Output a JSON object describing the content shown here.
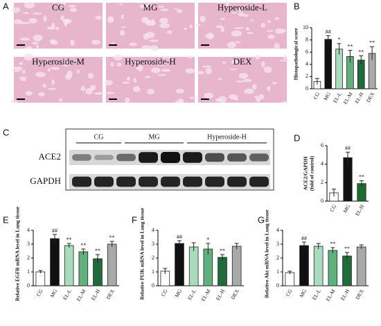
{
  "panel_letters": [
    "A",
    "B",
    "C",
    "D",
    "E",
    "F",
    "G"
  ],
  "histology": {
    "labels": [
      "CG",
      "MG",
      "Hyperoside-L",
      "Hyperoside-M",
      "Hyperoside-H",
      "DEX"
    ]
  },
  "blot": {
    "groups": [
      "CG",
      "MG",
      "Hyperoside-H"
    ],
    "rows": [
      "ACE2",
      "GAPDH"
    ]
  },
  "chart_data": [
    {
      "type": "bar",
      "ylabel": "Histopathological score",
      "categories": [
        "CG",
        "MG",
        "EL-L",
        "EL-M",
        "EL-H",
        "DEX"
      ],
      "values": [
        1.2,
        8.1,
        6.5,
        5.3,
        4.7,
        5.8
      ],
      "errors": [
        0.5,
        0.6,
        0.9,
        1.0,
        0.7,
        1.1
      ],
      "annotations": [
        null,
        "##",
        "*",
        "**",
        "**",
        "**"
      ],
      "colors": [
        "#ffffff",
        "#111111",
        "#a9dcbc",
        "#5fb07c",
        "#1f6b3b",
        "#a9a9a9"
      ],
      "ylim": [
        0,
        10
      ],
      "yticks": [
        0,
        2,
        4,
        6,
        8,
        10
      ]
    },
    {
      "type": "bar",
      "ylabel": [
        "ACE2/GAPDH",
        "(fold of control)"
      ],
      "categories": [
        "CG",
        "MG",
        "EL-H"
      ],
      "values": [
        0.9,
        4.7,
        1.9
      ],
      "errors": [
        0.4,
        0.6,
        0.3
      ],
      "annotations": [
        null,
        "##",
        "**"
      ],
      "colors": [
        "#ffffff",
        "#111111",
        "#1e6b2e"
      ],
      "ylim": [
        0,
        6
      ],
      "yticks": [
        0,
        2,
        4,
        6
      ]
    },
    {
      "type": "bar",
      "ylabel": "Relative EGFR mRNA level in Lung tissue",
      "categories": [
        "CG",
        "MG",
        "EL-L",
        "EL-M",
        "EL-H",
        "DEX"
      ],
      "values": [
        1.0,
        3.4,
        2.9,
        2.45,
        1.95,
        3.0
      ],
      "errors": [
        0.1,
        0.3,
        0.15,
        0.2,
        0.3,
        0.2
      ],
      "annotations": [
        null,
        "##",
        "**",
        "**",
        "**",
        "**"
      ],
      "colors": [
        "#ffffff",
        "#111111",
        "#a9dcbc",
        "#5fb07c",
        "#1f6b3b",
        "#a9a9a9"
      ],
      "ylim": [
        0,
        4
      ],
      "yticks": [
        0,
        1,
        2,
        3,
        4
      ]
    },
    {
      "type": "bar",
      "ylabel": "Relative PI3K mRNA level in Lung tissue",
      "categories": [
        "CG",
        "MG",
        "EL-L",
        "EL-M",
        "EL-H",
        "DEX"
      ],
      "values": [
        1.05,
        3.05,
        2.8,
        2.65,
        2.05,
        2.85
      ],
      "errors": [
        0.2,
        0.2,
        0.3,
        0.4,
        0.2,
        0.2
      ],
      "annotations": [
        null,
        "##",
        null,
        "*",
        "**",
        null
      ],
      "colors": [
        "#ffffff",
        "#111111",
        "#a9dcbc",
        "#5fb07c",
        "#1f6b3b",
        "#a9a9a9"
      ],
      "ylim": [
        0,
        4
      ],
      "yticks": [
        0,
        1,
        2,
        3,
        4
      ]
    },
    {
      "type": "bar",
      "ylabel": "Relative Akt mRNA level in Lung tissue",
      "categories": [
        "CG",
        "MG",
        "EL-L",
        "EL-M",
        "EL-H",
        "DEX"
      ],
      "values": [
        0.95,
        2.9,
        2.85,
        2.55,
        2.15,
        2.8
      ],
      "errors": [
        0.1,
        0.25,
        0.2,
        0.2,
        0.25,
        0.15
      ],
      "annotations": [
        null,
        "##",
        null,
        "**",
        "**",
        null
      ],
      "colors": [
        "#ffffff",
        "#111111",
        "#a9dcbc",
        "#5fb07c",
        "#1f6b3b",
        "#a9a9a9"
      ],
      "ylim": [
        0,
        4
      ],
      "yticks": [
        0,
        1,
        2,
        3,
        4
      ]
    }
  ]
}
